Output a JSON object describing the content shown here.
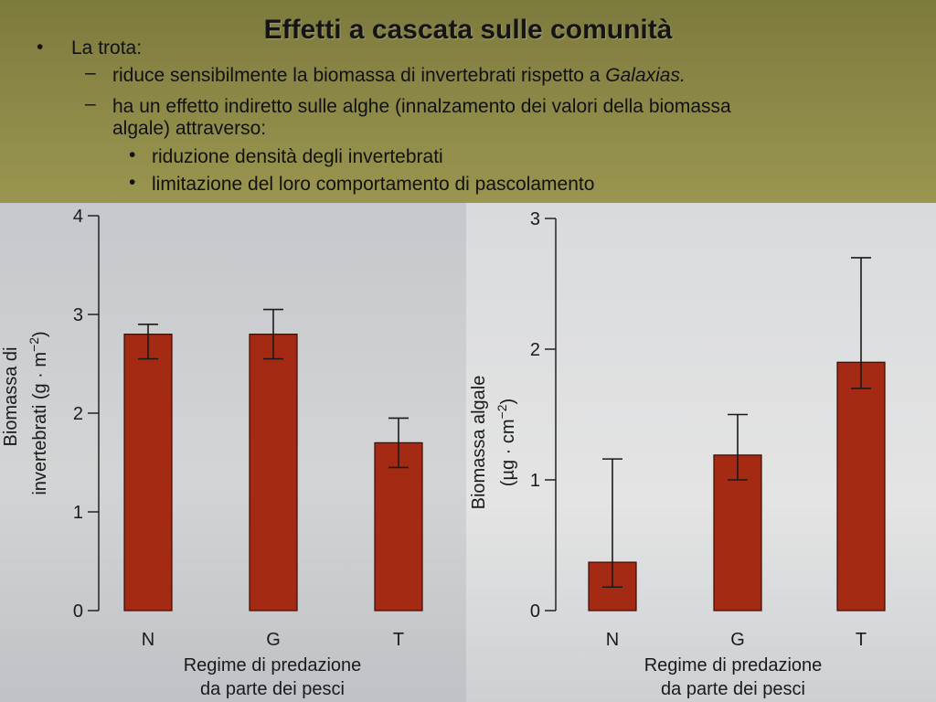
{
  "slide": {
    "title": "Effetti a cascata sulle comunità",
    "bullet1": "La trota:",
    "sub1": "riduce sensibilmente la biomassa di invertebrati rispetto a ",
    "sub1_italic": "Galaxias.",
    "sub2_line1": "ha un effetto indiretto sulle alghe (innalzamento dei valori della biomassa",
    "sub2_line2": "algale) attraverso:",
    "subsub1": "riduzione densità degli invertebrati",
    "subsub2": "limitazione del loro comportamento di pascolamento",
    "bullet_marker": "•",
    "dash_marker": "–"
  },
  "colors": {
    "bar": "#a42a14",
    "text": "#111111"
  },
  "chart_data": [
    {
      "type": "bar",
      "categories": [
        "N",
        "G",
        "T"
      ],
      "values": [
        2.8,
        2.8,
        1.7
      ],
      "error": [
        [
          2.55,
          2.9
        ],
        [
          2.55,
          3.05
        ],
        [
          1.45,
          1.95
        ]
      ],
      "ylim": [
        0,
        4
      ],
      "yticks": [
        0,
        1,
        2,
        3,
        4
      ],
      "ylabel_line1": "Biomassa di",
      "ylabel_line2": "invertebrati (g · m",
      "ylabel_sup": "−2",
      "ylabel_end": ")",
      "xlabel_line1": "Regime di predazione",
      "xlabel_line2": "da parte dei pesci"
    },
    {
      "type": "bar",
      "categories": [
        "N",
        "G",
        "T"
      ],
      "values": [
        0.37,
        1.19,
        1.9
      ],
      "error": [
        [
          0.18,
          1.16
        ],
        [
          1.0,
          1.5
        ],
        [
          1.7,
          2.7
        ]
      ],
      "ylim": [
        0,
        3
      ],
      "yticks": [
        0,
        1,
        2,
        3
      ],
      "ylabel_line1": "Biomassa algale",
      "ylabel_line2": "(µg · cm",
      "ylabel_sup": "−2",
      "ylabel_end": ")",
      "xlabel_line1": "Regime di predazione",
      "xlabel_line2": "da parte dei pesci"
    }
  ]
}
